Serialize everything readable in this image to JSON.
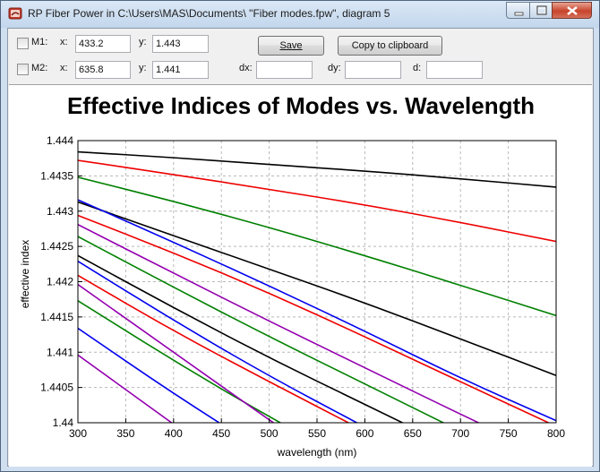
{
  "window": {
    "title": "RP Fiber Power in C:\\Users\\MAS\\Documents\\ \"Fiber modes.fpw\", diagram 5"
  },
  "marker1": {
    "label": "M1:",
    "x_label": "x:",
    "x_value": "433.2",
    "y_label": "y:",
    "y_value": "1.443",
    "checked": false
  },
  "marker2": {
    "label": "M2:",
    "x_label": "x:",
    "x_value": "635.8",
    "y_label": "y:",
    "y_value": "1.441",
    "checked": false
  },
  "deltas": {
    "dx_label": "dx:",
    "dx_value": "",
    "dy_label": "dy:",
    "dy_value": "",
    "d_label": "d:",
    "d_value": ""
  },
  "buttons": {
    "save_label": "Save",
    "copy_label": "Copy to clipboard"
  },
  "chart_data": {
    "type": "line",
    "title": "Effective Indices of Modes vs. Wavelength",
    "xlabel": "wavelength (nm)",
    "ylabel": "effective index",
    "xlim": [
      300,
      800
    ],
    "ylim": [
      1.44,
      1.444
    ],
    "xticks": [
      "300",
      "350",
      "400",
      "450",
      "500",
      "550",
      "600",
      "650",
      "700",
      "750",
      "800"
    ],
    "yticks": [
      "1.44",
      "1.4405",
      "1.441",
      "1.4415",
      "1.442",
      "1.4425",
      "1.443",
      "1.4435",
      "1.444"
    ],
    "grid": true,
    "colors": {
      "black": "#000000",
      "red": "#ee0000",
      "green": "#008000",
      "blue": "#0000ee",
      "purple": "#9400b0"
    },
    "series": [
      {
        "color": "black",
        "points": [
          [
            300,
            1.44384
          ],
          [
            400,
            1.44376
          ],
          [
            500,
            1.44366
          ],
          [
            600,
            1.44357
          ],
          [
            700,
            1.44346
          ],
          [
            800,
            1.44334
          ]
        ]
      },
      {
        "color": "red",
        "points": [
          [
            300,
            1.44372
          ],
          [
            400,
            1.44352
          ],
          [
            500,
            1.44331
          ],
          [
            600,
            1.44309
          ],
          [
            700,
            1.44284
          ],
          [
            800,
            1.44257
          ]
        ]
      },
      {
        "color": "green",
        "points": [
          [
            300,
            1.44348
          ],
          [
            400,
            1.44314
          ],
          [
            500,
            1.44277
          ],
          [
            600,
            1.44237
          ],
          [
            700,
            1.44195
          ],
          [
            800,
            1.44152
          ]
        ]
      },
      {
        "color": "black",
        "points": [
          [
            300,
            1.44313
          ],
          [
            400,
            1.44265
          ],
          [
            500,
            1.44218
          ],
          [
            600,
            1.4417
          ],
          [
            700,
            1.44119
          ],
          [
            800,
            1.44067
          ]
        ]
      },
      {
        "color": "blue",
        "points": [
          [
            300,
            1.44316
          ],
          [
            400,
            1.44256
          ],
          [
            500,
            1.44194
          ],
          [
            600,
            1.4413
          ],
          [
            700,
            1.44063
          ],
          [
            800,
            1.44003
          ]
        ]
      },
      {
        "color": "red",
        "points": [
          [
            300,
            1.44294
          ],
          [
            400,
            1.44241
          ],
          [
            500,
            1.44184
          ],
          [
            600,
            1.44122
          ],
          [
            700,
            1.44058
          ],
          [
            800,
            1.43995
          ]
        ]
      },
      {
        "color": "purple",
        "points": [
          [
            300,
            1.44281
          ],
          [
            400,
            1.44212
          ],
          [
            500,
            1.44144
          ],
          [
            600,
            1.44078
          ],
          [
            700,
            1.44012
          ],
          [
            800,
            1.43948
          ]
        ]
      },
      {
        "color": "green",
        "points": [
          [
            300,
            1.44264
          ],
          [
            400,
            1.44192
          ],
          [
            500,
            1.44122
          ],
          [
            600,
            1.44055
          ],
          [
            700,
            1.43988
          ]
        ]
      },
      {
        "color": "black",
        "points": [
          [
            300,
            1.44237
          ],
          [
            400,
            1.44163
          ],
          [
            500,
            1.44092
          ],
          [
            600,
            1.44026
          ],
          [
            700,
            1.4396
          ]
        ]
      },
      {
        "color": "blue",
        "points": [
          [
            300,
            1.44229
          ],
          [
            400,
            1.44145
          ],
          [
            500,
            1.44066
          ],
          [
            600,
            1.43994
          ]
        ]
      },
      {
        "color": "red",
        "points": [
          [
            300,
            1.44209
          ],
          [
            400,
            1.4413
          ],
          [
            500,
            1.44058
          ],
          [
            600,
            1.43988
          ]
        ]
      },
      {
        "color": "green",
        "points": [
          [
            300,
            1.44173
          ],
          [
            400,
            1.44088
          ],
          [
            500,
            1.44008
          ],
          [
            600,
            1.43935
          ]
        ]
      },
      {
        "color": "purple",
        "points": [
          [
            300,
            1.44196
          ],
          [
            400,
            1.441
          ],
          [
            500,
            1.44004
          ],
          [
            600,
            1.4391
          ]
        ]
      },
      {
        "color": "blue",
        "points": [
          [
            300,
            1.44134
          ],
          [
            400,
            1.44041
          ],
          [
            500,
            1.43955
          ]
        ]
      },
      {
        "color": "purple",
        "points": [
          [
            300,
            1.44096
          ],
          [
            400,
            1.43998
          ],
          [
            500,
            1.439
          ]
        ]
      }
    ]
  }
}
